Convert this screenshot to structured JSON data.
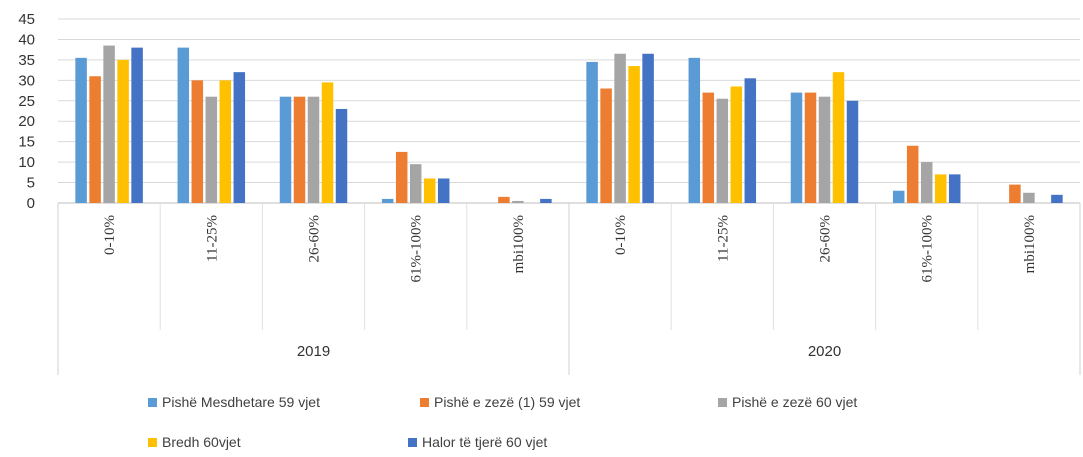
{
  "chart_data": {
    "type": "bar",
    "title": "",
    "xlabel": "",
    "ylabel": "",
    "ylim": [
      0,
      45
    ],
    "yticks": [
      0,
      5,
      10,
      15,
      20,
      25,
      30,
      35,
      40,
      45
    ],
    "grid": true,
    "legend_position": "bottom",
    "groups": [
      "2019",
      "2020"
    ],
    "categories": [
      "0-10%",
      "11-25%",
      "26-60%",
      "61%-100%",
      "mbi100%"
    ],
    "series": [
      {
        "name": "Pishë Mesdhetare  59 vjet",
        "color": "#5B9BD5",
        "values": [
          [
            35.5,
            38,
            26,
            1,
            0
          ],
          [
            34.5,
            35.5,
            27,
            3,
            0
          ]
        ]
      },
      {
        "name": "Pishë e zezë (1) 59 vjet",
        "color": "#ED7D31",
        "values": [
          [
            31,
            30,
            26,
            12.5,
            1.5
          ],
          [
            28,
            27,
            27,
            14,
            4.5
          ]
        ]
      },
      {
        "name": "Pishë e zezë 60 vjet",
        "color": "#A5A5A5",
        "values": [
          [
            38.5,
            26,
            26,
            9.5,
            0.5
          ],
          [
            36.5,
            25.5,
            26,
            10,
            2.5
          ]
        ]
      },
      {
        "name": "Bredh 60vjet",
        "color": "#FFC000",
        "values": [
          [
            35,
            30,
            29.5,
            6,
            0
          ],
          [
            33.5,
            28.5,
            32,
            7,
            0
          ]
        ]
      },
      {
        "name": "Halor të tjerë  60 vjet",
        "color": "#4472C4",
        "values": [
          [
            38,
            32,
            23,
            6,
            1
          ],
          [
            36.5,
            30.5,
            25,
            7,
            2
          ]
        ]
      }
    ]
  }
}
